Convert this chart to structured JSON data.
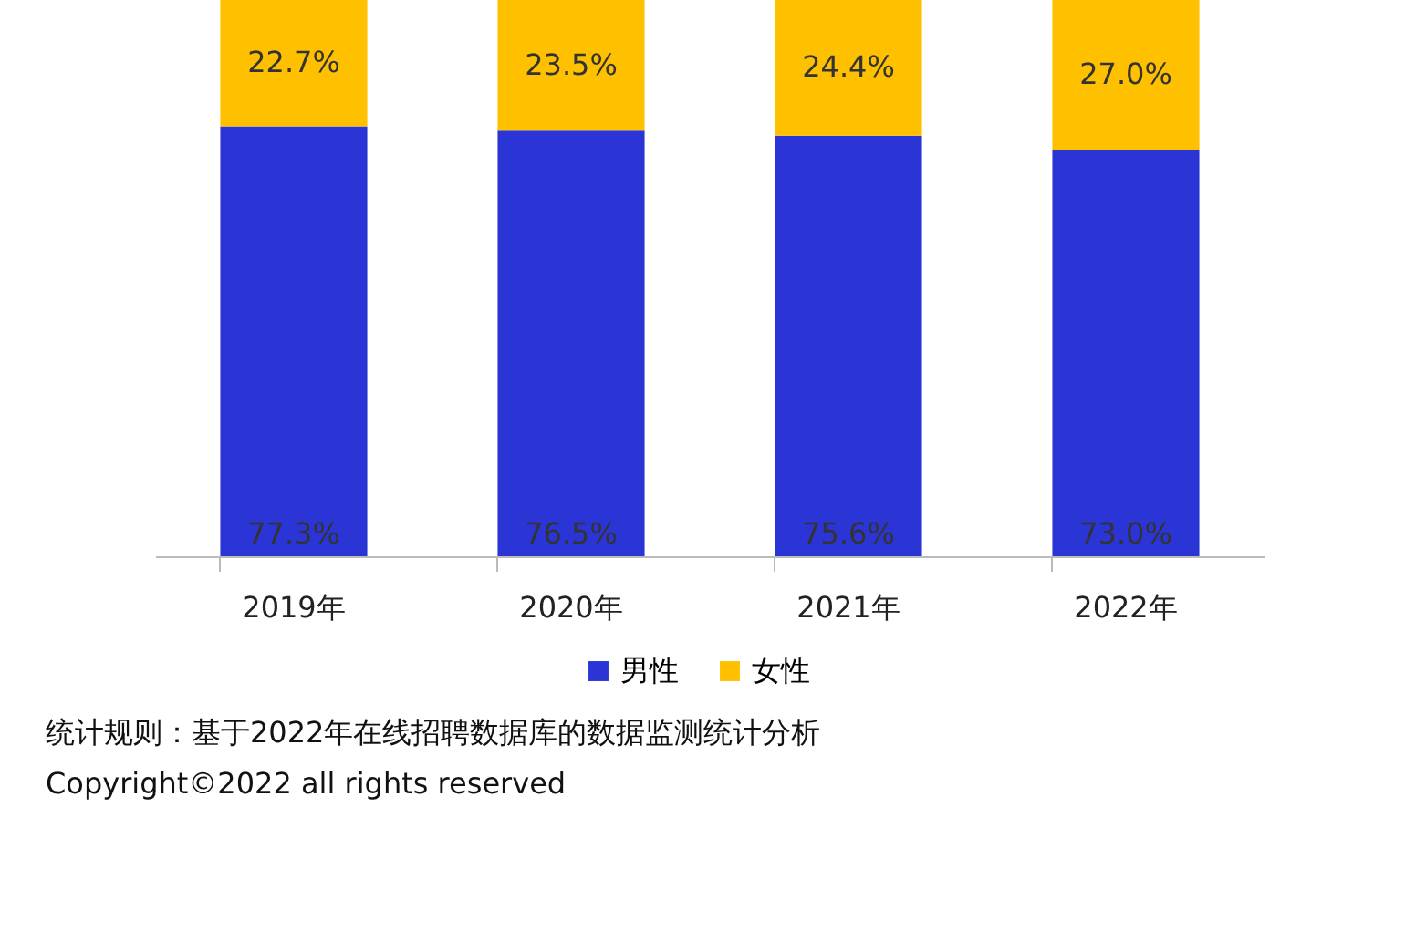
{
  "chart_data": {
    "type": "bar",
    "stacked": true,
    "legend": "bottom",
    "categories": [
      "2019年",
      "2020年",
      "2021年",
      "2022年"
    ],
    "series": [
      {
        "name": "男性",
        "color": "#2b35d6",
        "values": [
          77.3,
          76.5,
          75.6,
          73.0
        ],
        "value_labels": [
          "77.3%",
          "76.5%",
          "75.6%",
          "73.0%"
        ]
      },
      {
        "name": "女性",
        "color": "#ffc000",
        "values": [
          22.7,
          23.5,
          24.4,
          27.0
        ],
        "value_labels": [
          "22.7%",
          "23.5%",
          "24.4%",
          "27.0%"
        ]
      }
    ],
    "annotations": [
      "统计规则：基于2022年在线招聘数据库的数据监测统计分析",
      "Copyright©2022 all rights reserved"
    ]
  }
}
